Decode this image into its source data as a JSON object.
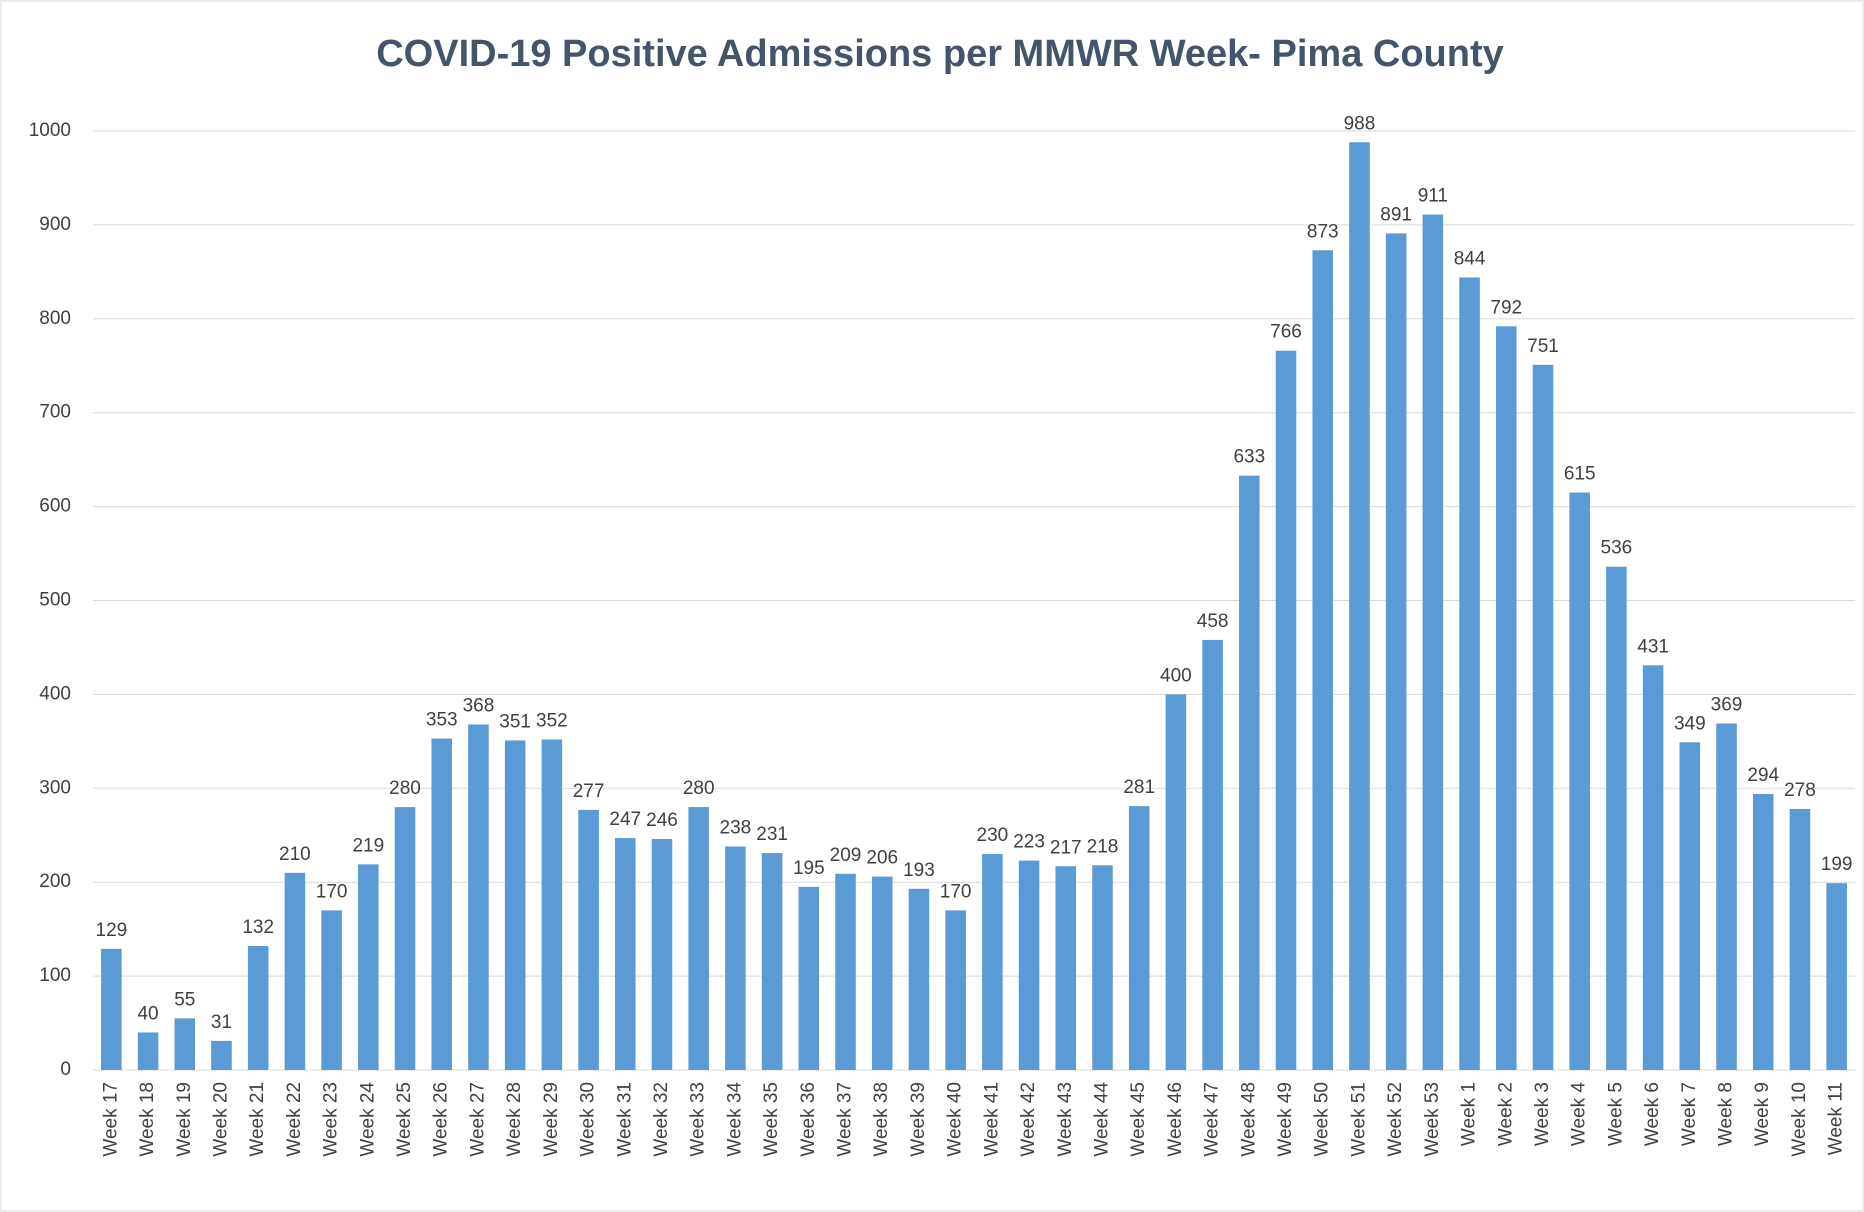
{
  "chart_data": {
    "type": "bar",
    "title": "COVID-19 Positive Admissions  per MMWR Week- Pima County",
    "categories": [
      "Week 17",
      "Week 18",
      "Week 19",
      "Week 20",
      "Week 21",
      "Week 22",
      "Week 23",
      "Week 24",
      "Week 25",
      "Week 26",
      "Week 27",
      "Week 28",
      "Week 29",
      "Week 30",
      "Week 31",
      "Week 32",
      "Week 33",
      "Week 34",
      "Week 35",
      "Week 36",
      "Week 37",
      "Week 38",
      "Week 39",
      "Week 40",
      "Week 41",
      "Week 42",
      "Week 43",
      "Week 44",
      "Week 45",
      "Week 46",
      "Week 47",
      "Week 48",
      "Week 49",
      "Week 50",
      "Week 51",
      "Week 52",
      "Week 53",
      "Week 1",
      "Week 2",
      "Week 3",
      "Week 4",
      "Week 5",
      "Week 6",
      "Week 7",
      "Week 8",
      "Week 9",
      "Week 10",
      "Week 11"
    ],
    "values": [
      129,
      40,
      55,
      31,
      132,
      210,
      170,
      219,
      280,
      353,
      368,
      351,
      352,
      277,
      247,
      246,
      280,
      238,
      231,
      195,
      209,
      206,
      193,
      170,
      230,
      223,
      217,
      218,
      281,
      400,
      458,
      633,
      766,
      873,
      988,
      891,
      911,
      844,
      792,
      751,
      615,
      536,
      431,
      349,
      369,
      294,
      278,
      199
    ],
    "color": "#5b9bd5",
    "ylim": [
      0,
      1000
    ],
    "yticks": [
      0,
      100,
      200,
      300,
      400,
      500,
      600,
      700,
      800,
      900,
      1000
    ],
    "grid": true
  }
}
